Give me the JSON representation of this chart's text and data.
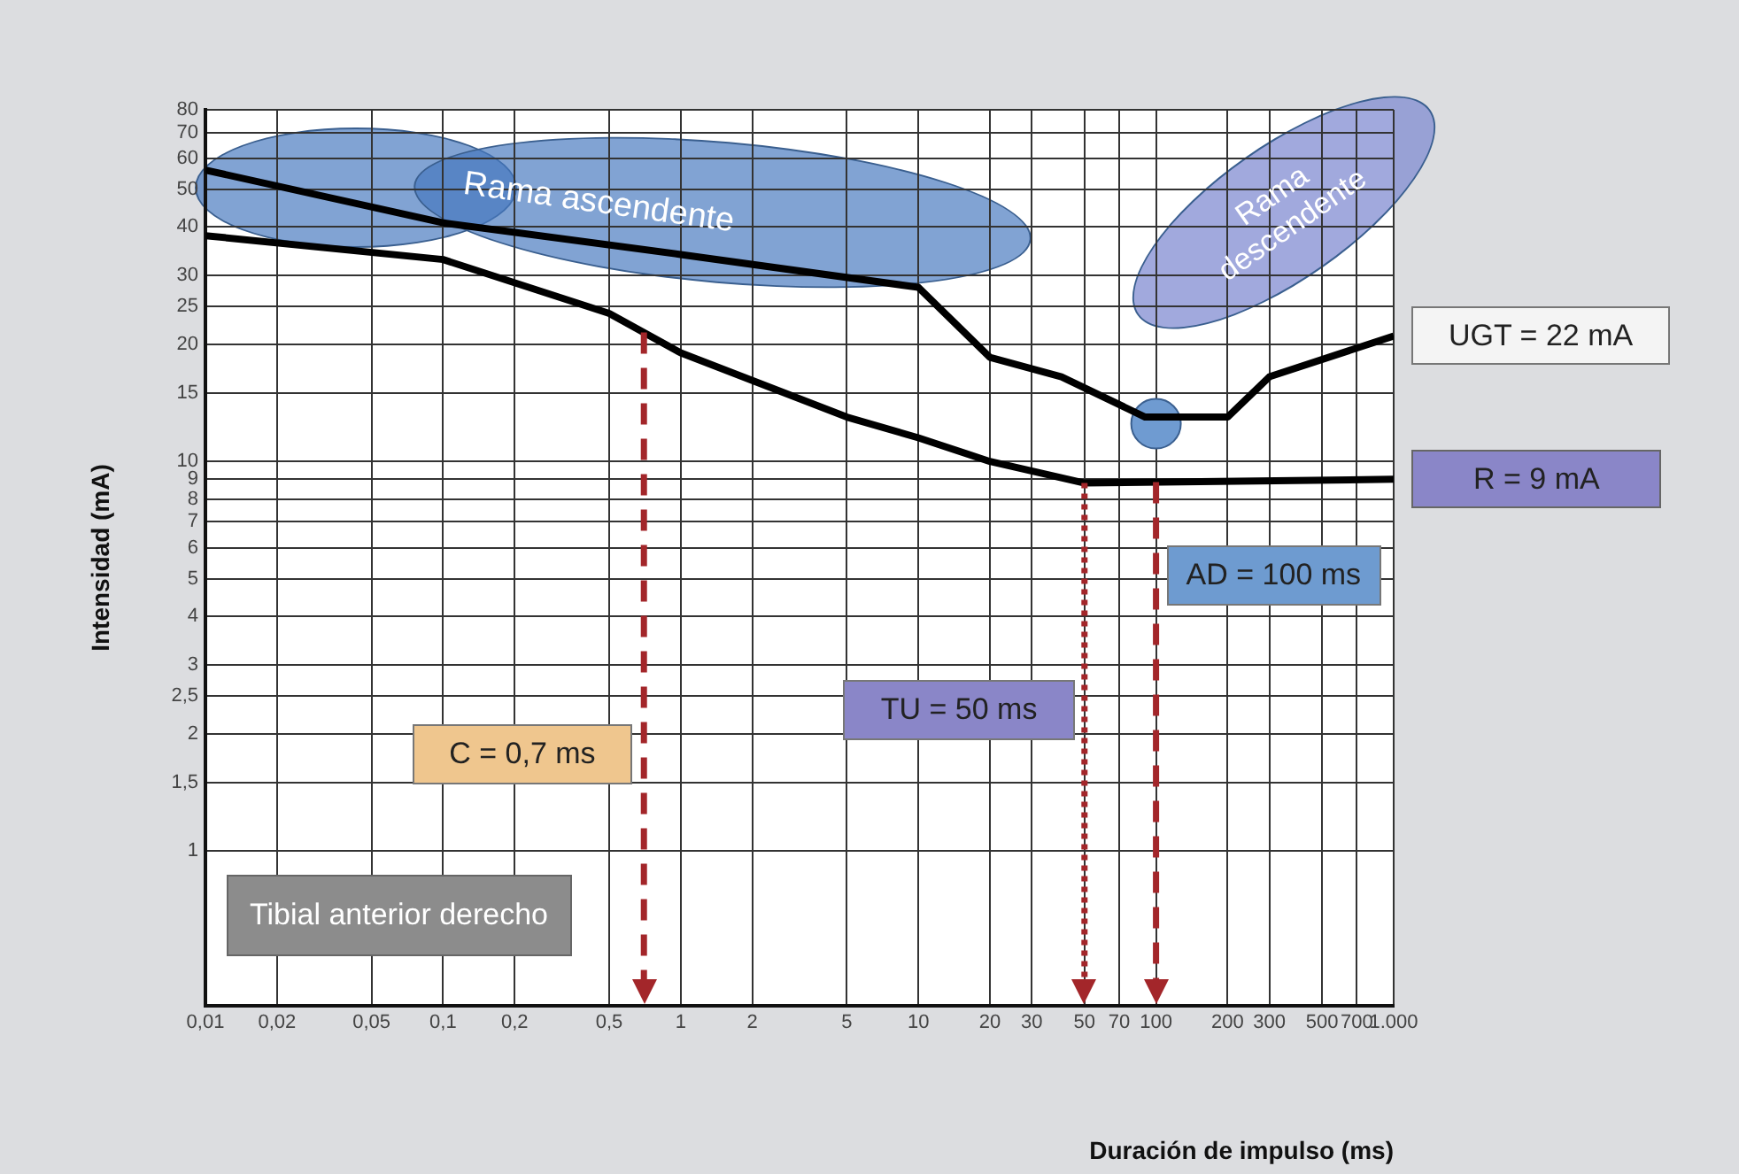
{
  "chart_data": {
    "type": "line",
    "xlabel": "Duración de impulso (ms)",
    "ylabel": "Intensidad (mA)",
    "log": "xy",
    "grid": true,
    "legend": false,
    "line_style": "solid",
    "xlim": [
      0.01,
      1000
    ],
    "ylim": [
      0.4,
      80
    ],
    "xticks": [
      {
        "value": 0.01,
        "label": "0,01"
      },
      {
        "value": 0.02,
        "label": "0,02"
      },
      {
        "value": 0.05,
        "label": "0,05"
      },
      {
        "value": 0.1,
        "label": "0,1"
      },
      {
        "value": 0.2,
        "label": "0,2"
      },
      {
        "value": 0.5,
        "label": "0,5"
      },
      1,
      2,
      5,
      10,
      20,
      30,
      50,
      70,
      100,
      200,
      300,
      500,
      700,
      {
        "value": 1000,
        "label": "1.000"
      }
    ],
    "yticks": [
      1,
      {
        "value": 1.5,
        "label": "1,5"
      },
      2,
      {
        "value": 2.5,
        "label": "2,5"
      },
      3,
      4,
      5,
      6,
      7,
      8,
      9,
      10,
      15,
      20,
      25,
      30,
      40,
      50,
      60,
      70,
      80
    ],
    "series": [
      {
        "color": "#000000",
        "x": [
          0.01,
          0.1,
          1,
          10,
          20,
          40,
          90,
          200,
          300,
          1000
        ],
        "values": [
          56,
          41,
          34,
          28,
          18.5,
          16.5,
          13,
          13,
          16.5,
          21
        ]
      },
      {
        "color": "#000000",
        "x": [
          0.01,
          0.1,
          0.5,
          1,
          5,
          10,
          20,
          50,
          1000
        ],
        "values": [
          38,
          33,
          24,
          19,
          13,
          11.5,
          10,
          8.8,
          9
        ]
      },
      {
        "type": "scatter",
        "marker": "circle",
        "color": "#6f9bd1",
        "x": [
          100
        ],
        "values": [
          12.5
        ]
      }
    ],
    "ref_lines": [
      {
        "axis": "x",
        "value": 0.7,
        "label": "C = 0,7 ms",
        "color": "#a3262a",
        "line_style": "dashed"
      },
      {
        "axis": "x",
        "value": 50,
        "label": "TU = 50 ms",
        "color": "#a3262a",
        "line_style": "dotted"
      },
      {
        "axis": "x",
        "value": 100,
        "label": "AD = 100 ms",
        "color": "#a3262a",
        "line_style": "dashed"
      }
    ],
    "annotations": [
      "Rama ascendente",
      "Rama descendente",
      {
        "text": "UGT = 22 mA",
        "x": 1000,
        "y": 21
      },
      {
        "text": "R = 9 mA",
        "x": 1000,
        "y": 9
      },
      "Tibial anterior derecho"
    ]
  }
}
